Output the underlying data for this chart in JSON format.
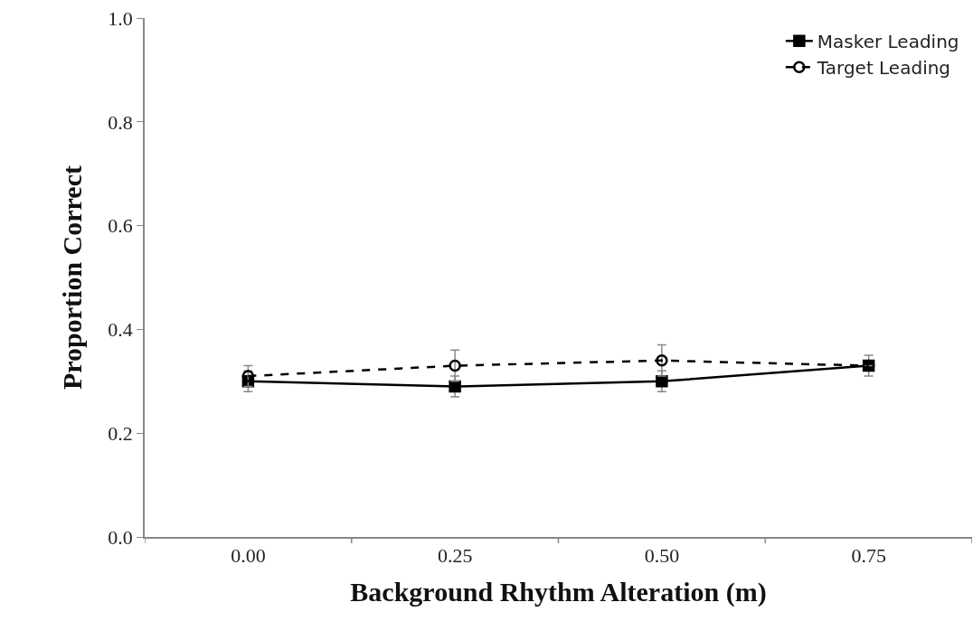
{
  "chart_data": {
    "type": "line",
    "xlabel": "Background Rhythm Alteration (m)",
    "ylabel": "Proportion Correct",
    "categories": [
      "0.00",
      "0.25",
      "0.50",
      "0.75"
    ],
    "series": [
      {
        "name": "Masker Leading",
        "color": "#000000",
        "values": [
          0.3,
          0.29,
          0.3,
          0.33
        ],
        "errors": [
          0.02,
          0.02,
          0.02,
          0.02
        ],
        "marker": "square",
        "line_style": "solid"
      },
      {
        "name": "Target Leading",
        "color": "#000000",
        "values": [
          0.31,
          0.33,
          0.34,
          0.33
        ],
        "errors": [
          0.02,
          0.03,
          0.03,
          null
        ],
        "marker": "circle",
        "line_style": "dashed"
      }
    ],
    "ylim": [
      0,
      1
    ],
    "yticks": [
      {
        "value": 0,
        "label": "0.0"
      },
      {
        "value": 0.2,
        "label": "0.2"
      },
      {
        "value": 0.4,
        "label": "0.4"
      },
      {
        "value": 0.6,
        "label": "0.6"
      },
      {
        "value": 0.8,
        "label": "0.8"
      },
      {
        "value": 1,
        "label": "1.0"
      }
    ],
    "legend": "top right"
  }
}
